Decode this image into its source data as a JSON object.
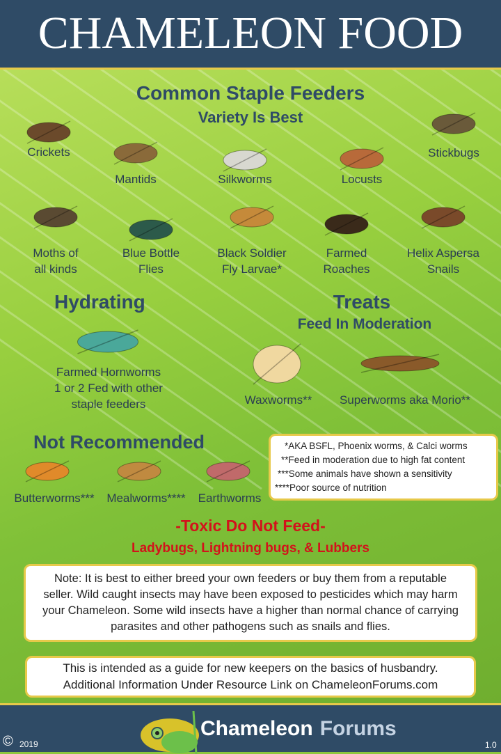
{
  "title": "Chameleon Food",
  "staple": {
    "heading": "Common Staple Feeders",
    "subheading": "Variety Is Best",
    "items": [
      {
        "label": "Crickets",
        "color": "#6b4a2b"
      },
      {
        "label": "Mantids",
        "color": "#8a6a3a"
      },
      {
        "label": "Silkworms",
        "color": "#d8d8d0"
      },
      {
        "label": "Locusts",
        "color": "#b86a3a"
      },
      {
        "label": "Stickbugs",
        "color": "#6a5a3a"
      },
      {
        "label": "Moths of\nall kinds",
        "color": "#5a4a32"
      },
      {
        "label": "Blue Bottle\nFlies",
        "color": "#2c5a4a"
      },
      {
        "label": "Black Soldier\nFly Larvae*",
        "color": "#c58a3a"
      },
      {
        "label": "Farmed\nRoaches",
        "color": "#3a2a1a"
      },
      {
        "label": "Helix Aspersa\nSnails",
        "color": "#7a4a2a"
      }
    ]
  },
  "hydrating": {
    "heading": "Hydrating",
    "items": [
      {
        "label": "Farmed Hornworms\n1 or 2 Fed with other\nstaple feeders",
        "color": "#4aa89a"
      }
    ]
  },
  "treats": {
    "heading": "Treats",
    "subheading": "Feed In Moderation",
    "items": [
      {
        "label": "Waxworms**",
        "color": "#f0d8a0"
      },
      {
        "label": "Superworms aka Morio**",
        "color": "#8a5a2a"
      }
    ]
  },
  "not_recommended": {
    "heading": "Not Recommended",
    "items": [
      {
        "label": "Butterworms***",
        "color": "#e08a2a"
      },
      {
        "label": "Mealworms****",
        "color": "#c08a40"
      },
      {
        "label": "Earthworms",
        "color": "#c06a6a"
      }
    ]
  },
  "footnotes": [
    "*AKA BSFL, Phoenix worms, & Calci worms",
    "**Feed in moderation due to high fat content",
    "***Some animals have shown a sensitivity",
    "****Poor source of nutrition"
  ],
  "toxic": {
    "heading": "-Toxic Do Not Feed-",
    "items": "Ladybugs, Lightning bugs, & Lubbers"
  },
  "note": "Note: It is best to either breed your own feeders or buy them from a reputable seller. Wild caught insects may have been exposed to pesticides which may harm your Chameleon. Some wild insects have a higher than normal chance of carrying parasites and other pathogens such as snails and flies.",
  "guide": [
    "This is intended as a guide for new keepers on the basics of husbandry.",
    "Additional Information Under Resource Link on ChameleonForums.com"
  ],
  "footer": {
    "copyright_symbol": "©",
    "year": "2019",
    "logo_text_1": "Chameleon",
    "logo_text_2": "Forums",
    "version": "1.0"
  },
  "colors": {
    "header": "#2f4b66",
    "accent": "#e7c94a",
    "heading": "#2f4b66",
    "toxic": "#d2131b"
  }
}
